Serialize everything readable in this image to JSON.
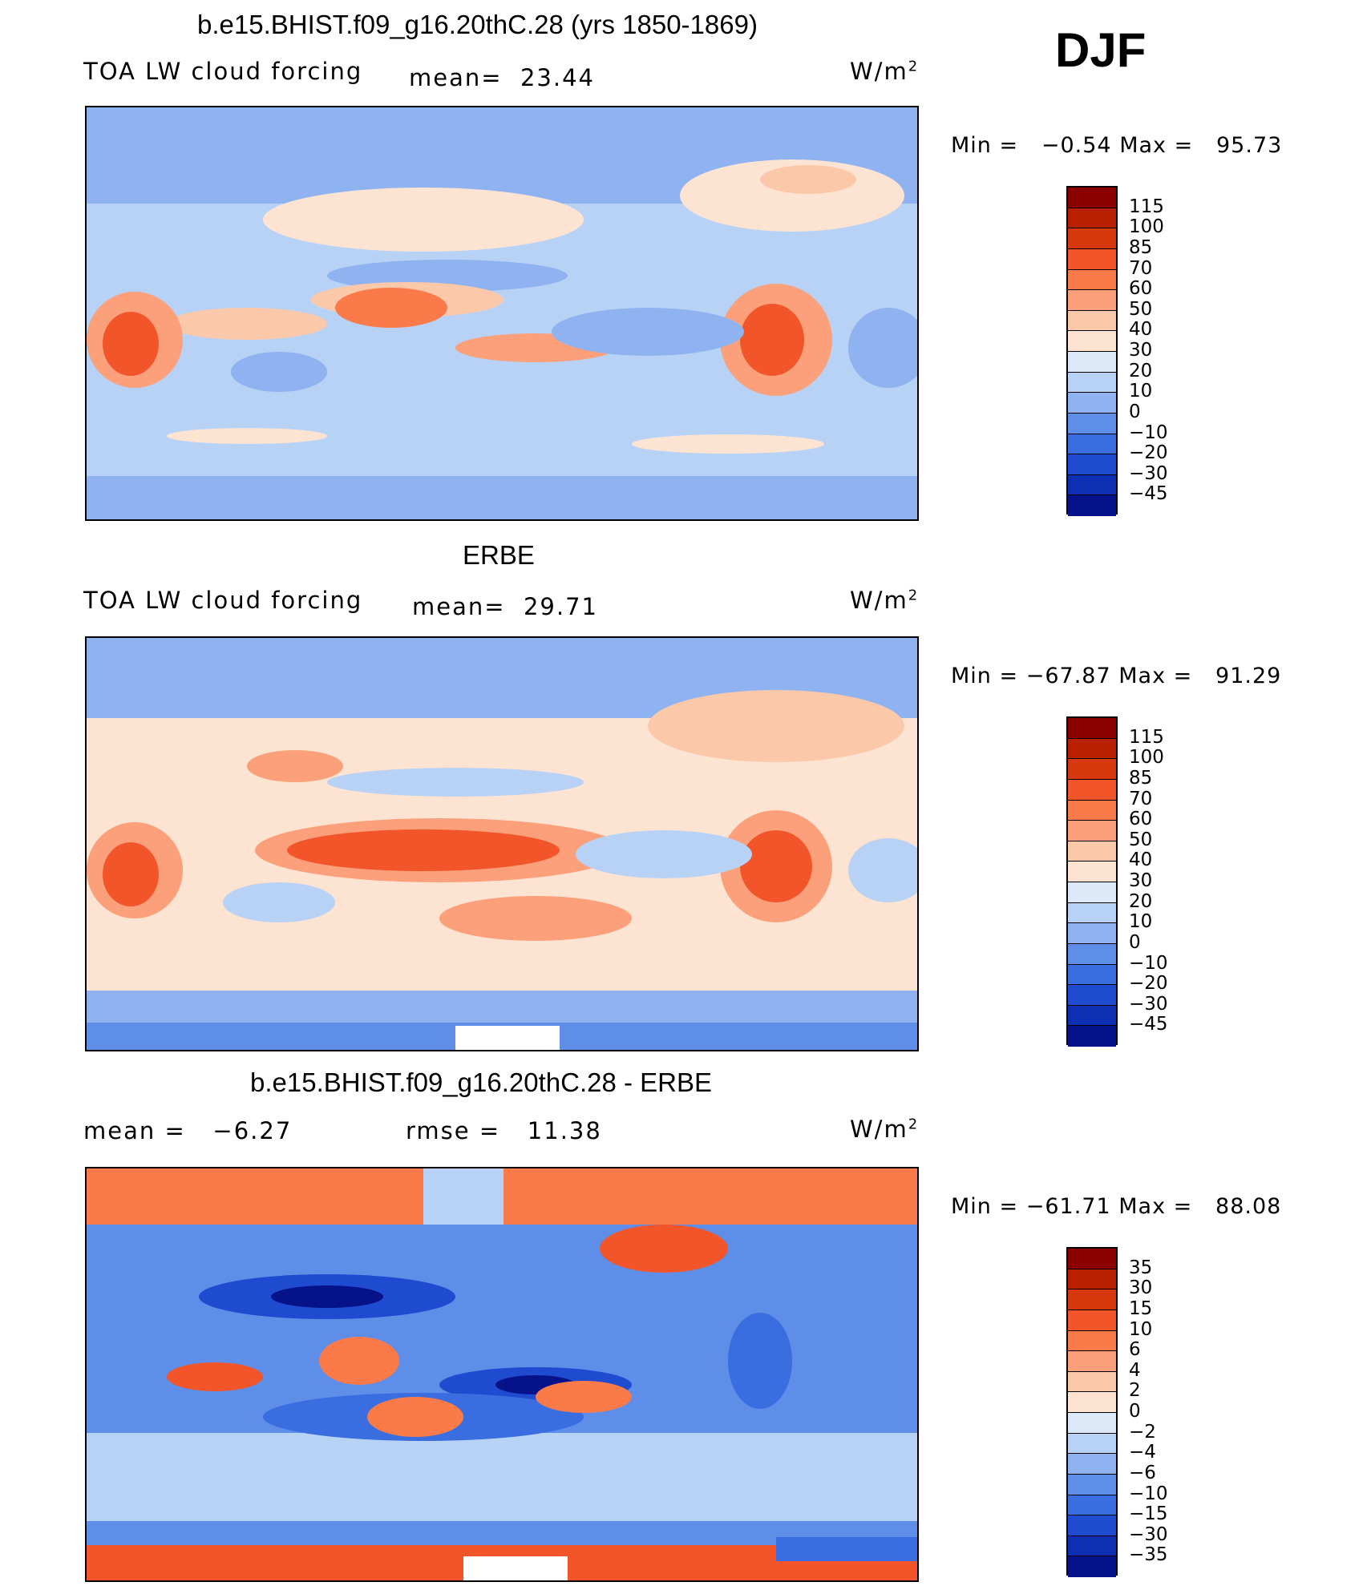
{
  "header": {
    "season": "DJF"
  },
  "panels": [
    {
      "id": "model",
      "title": "b.e15.BHIST.f09_g16.20thC.28 (yrs 1850-1869)",
      "left_label": "TOA LW cloud forcing",
      "mean_label": "mean=",
      "mean_value": "23.44",
      "units": "W/m",
      "units_sup": "2",
      "min_label": "Min =",
      "min_value": "−0.54",
      "max_label": "Max =",
      "max_value": "95.73",
      "colorbar_labels": [
        "115",
        "100",
        "85",
        "70",
        "60",
        "50",
        "40",
        "30",
        "20",
        "10",
        "0",
        "−10",
        "−20",
        "−30",
        "−45"
      ],
      "colorbar_colors": [
        "#8c0000",
        "#b82000",
        "#d8380e",
        "#f2552a",
        "#fa7a4a",
        "#fba07a",
        "#fcc8aa",
        "#fde4d2",
        "#dbe9f9",
        "#b8d2f5",
        "#8fb3f0",
        "#5e8ee8",
        "#3a6ee0",
        "#1f4bd0",
        "#0d2fb4",
        "#06128a"
      ]
    },
    {
      "id": "obs",
      "title": "ERBE",
      "left_label": "TOA LW cloud forcing",
      "mean_label": "mean=",
      "mean_value": "29.71",
      "units": "W/m",
      "units_sup": "2",
      "min_label": "Min =",
      "min_value": "−67.87",
      "max_label": "Max =",
      "max_value": "91.29",
      "colorbar_labels": [
        "115",
        "100",
        "85",
        "70",
        "60",
        "50",
        "40",
        "30",
        "20",
        "10",
        "0",
        "−10",
        "−20",
        "−30",
        "−45"
      ],
      "colorbar_colors": [
        "#8c0000",
        "#b82000",
        "#d8380e",
        "#f2552a",
        "#fa7a4a",
        "#fba07a",
        "#fcc8aa",
        "#fde4d2",
        "#dbe9f9",
        "#b8d2f5",
        "#8fb3f0",
        "#5e8ee8",
        "#3a6ee0",
        "#1f4bd0",
        "#0d2fb4",
        "#06128a"
      ]
    },
    {
      "id": "diff",
      "title": "b.e15.BHIST.f09_g16.20thC.28 - ERBE",
      "mean_label": "mean =",
      "mean_value": "−6.27",
      "rmse_label": "rmse =",
      "rmse_value": "11.38",
      "units": "W/m",
      "units_sup": "2",
      "min_label": "Min =",
      "min_value": "−61.71",
      "max_label": "Max =",
      "max_value": "88.08",
      "colorbar_labels": [
        "35",
        "30",
        "15",
        "10",
        "6",
        "4",
        "2",
        "0",
        "−2",
        "−4",
        "−6",
        "−10",
        "−15",
        "−30",
        "−35"
      ],
      "colorbar_colors": [
        "#8c0000",
        "#b82000",
        "#d8380e",
        "#f2552a",
        "#fa7a4a",
        "#fba07a",
        "#fcc8aa",
        "#fde4d2",
        "#dbe9f9",
        "#b8d2f5",
        "#8fb3f0",
        "#5e8ee8",
        "#3a6ee0",
        "#1f4bd0",
        "#0d2fb4",
        "#06128a"
      ]
    }
  ]
}
